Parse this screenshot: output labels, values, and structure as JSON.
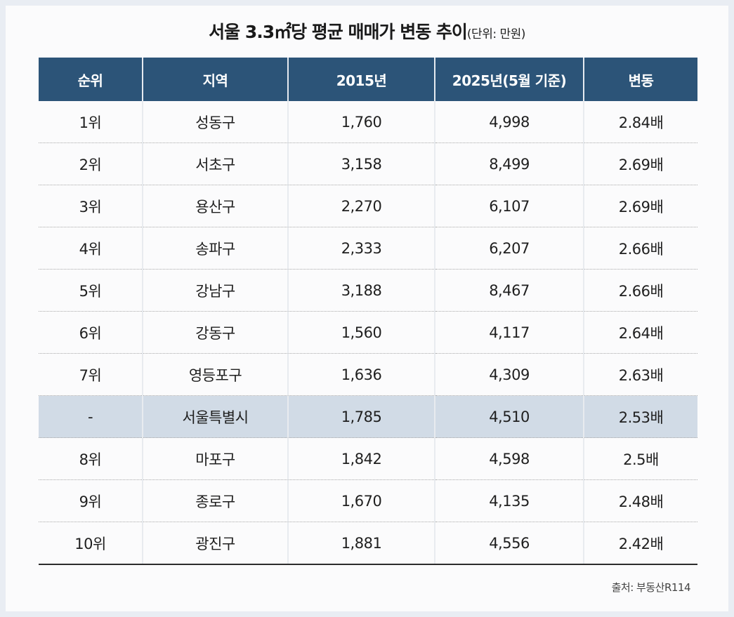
{
  "title": {
    "main": "서울 3.3㎡당 평균 매매가 변동 추이",
    "unit": "(단위: 만원)"
  },
  "table": {
    "headers": [
      "순위",
      "지역",
      "2015년",
      "2025년(5월 기준)",
      "변동"
    ],
    "rows": [
      {
        "rank": "1위",
        "region": "성동구",
        "y2015": "1,760",
        "y2025": "4,998",
        "change": "2.84배"
      },
      {
        "rank": "2위",
        "region": "서초구",
        "y2015": "3,158",
        "y2025": "8,499",
        "change": "2.69배"
      },
      {
        "rank": "3위",
        "region": "용산구",
        "y2015": "2,270",
        "y2025": "6,107",
        "change": "2.69배"
      },
      {
        "rank": "4위",
        "region": "송파구",
        "y2015": "2,333",
        "y2025": "6,207",
        "change": "2.66배"
      },
      {
        "rank": "5위",
        "region": "강남구",
        "y2015": "3,188",
        "y2025": "8,467",
        "change": "2.66배"
      },
      {
        "rank": "6위",
        "region": "강동구",
        "y2015": "1,560",
        "y2025": "4,117",
        "change": "2.64배"
      },
      {
        "rank": "7위",
        "region": "영등포구",
        "y2015": "1,636",
        "y2025": "4,309",
        "change": "2.63배"
      },
      {
        "rank": "-",
        "region": "서울특별시",
        "y2015": "1,785",
        "y2025": "4,510",
        "change": "2.53배"
      },
      {
        "rank": "8위",
        "region": "마포구",
        "y2015": "1,842",
        "y2025": "4,598",
        "change": "2.5배"
      },
      {
        "rank": "9위",
        "region": "종로구",
        "y2015": "1,670",
        "y2025": "4,135",
        "change": "2.48배"
      },
      {
        "rank": "10위",
        "region": "광진구",
        "y2015": "1,881",
        "y2025": "4,556",
        "change": "2.42배"
      }
    ]
  },
  "source": "출처: 부동산R114",
  "colors": {
    "header_bg": "#2c5478",
    "highlight_row": "#d1dbe6",
    "background": "#e9edf3"
  }
}
